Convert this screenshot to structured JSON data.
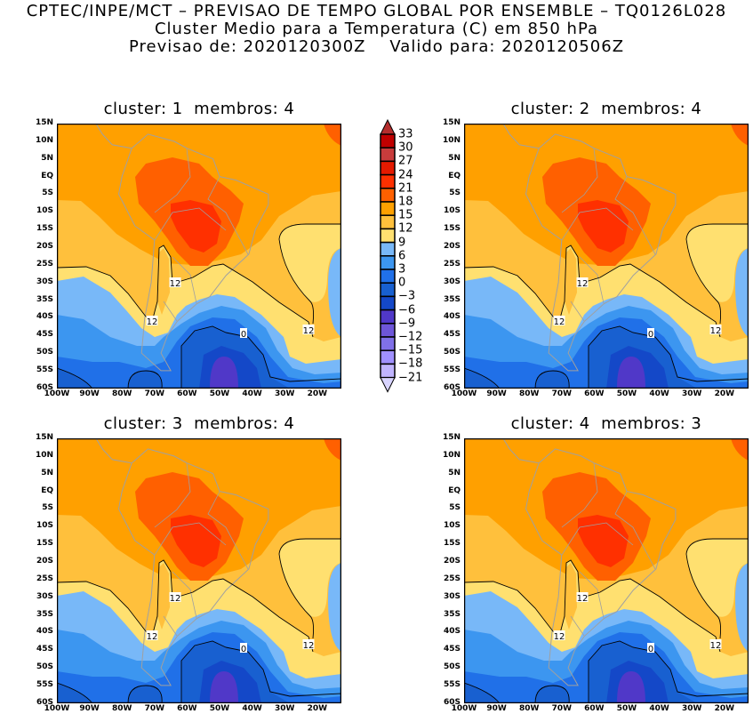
{
  "header": {
    "line1": "CPTEC/INPE/MCT – PREVISAO DE TEMPO GLOBAL POR ENSEMBLE – TQ0126L028",
    "line2": "Cluster Medio para a Temperatura (C) em 850 hPa",
    "line3": "Previsao de: 2020120300Z    Valido para: 2020120506Z"
  },
  "panels": [
    {
      "title": "cluster: 1  membros: 4"
    },
    {
      "title": "cluster: 2  membros: 4"
    },
    {
      "title": "cluster: 3  membros: 4"
    },
    {
      "title": "cluster: 4  membros: 3"
    }
  ],
  "axes": {
    "lon_labels": [
      "100W",
      "90W",
      "80W",
      "70W",
      "60W",
      "50W",
      "40W",
      "30W",
      "20W"
    ],
    "lat_labels": [
      "15N",
      "10N",
      "5N",
      "EQ",
      "5S",
      "10S",
      "15S",
      "20S",
      "25S",
      "30S",
      "35S",
      "40S",
      "45S",
      "50S",
      "55S",
      "60S"
    ]
  },
  "contour_labels": {
    "twelve": "12",
    "zero": "0"
  },
  "colorbar": {
    "labels": [
      "33",
      "30",
      "27",
      "24",
      "21",
      "18",
      "15",
      "12",
      "9",
      "6",
      "3",
      "0",
      "−3",
      "−6",
      "−9",
      "−12",
      "−15",
      "−18",
      "−21"
    ],
    "colors": [
      "#c00000",
      "#c83c3c",
      "#e41a00",
      "#ff3000",
      "#ff6000",
      "#ffa000",
      "#ffc03c",
      "#ffe070",
      "#78b8f8",
      "#3c96f0",
      "#2070e8",
      "#1860d0",
      "#1448c8",
      "#5038c8",
      "#6e56d8",
      "#8070e8",
      "#a090ff",
      "#c0b4ff"
    ],
    "top_color": "#b42d2d",
    "bottom_color": "#d8d4ff"
  }
}
